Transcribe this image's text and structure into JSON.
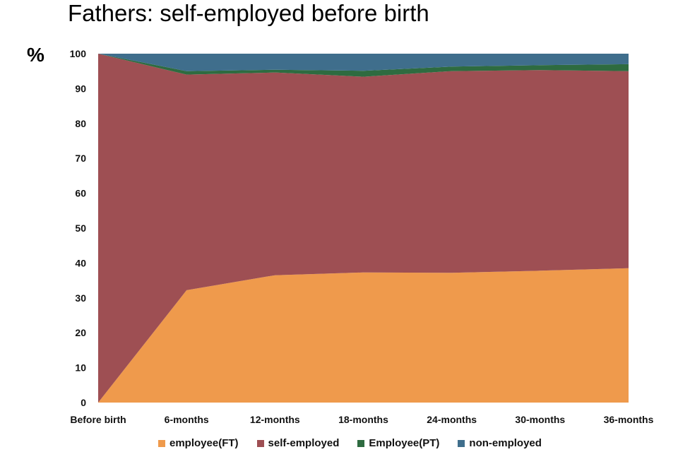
{
  "title": "Fathers: self-employed before birth",
  "chart_data": {
    "type": "area",
    "stacked": true,
    "title": "Fathers: self-employed before birth",
    "ylabel": "%",
    "xlabel": "",
    "ylim": [
      0,
      100
    ],
    "yticks": [
      0,
      10,
      20,
      30,
      40,
      50,
      60,
      70,
      80,
      90,
      100
    ],
    "categories": [
      "Before birth",
      "6-months",
      "12-months",
      "18-months",
      "24-months",
      "30-months",
      "36-months"
    ],
    "series": [
      {
        "name": "employee(FT)",
        "color": "#ef9a4c",
        "values": [
          0,
          32.2,
          36.5,
          37.3,
          37.2,
          37.8,
          38.5
        ]
      },
      {
        "name": "self-employed",
        "color": "#9e4f53",
        "values": [
          100,
          61.8,
          58.1,
          56.1,
          57.8,
          57.5,
          56.5
        ]
      },
      {
        "name": "Employee(PT)",
        "color": "#2e6b40",
        "values": [
          0,
          1.0,
          0.8,
          1.7,
          1.3,
          1.4,
          2.0
        ]
      },
      {
        "name": "non-employed",
        "color": "#3f6e8c",
        "values": [
          0,
          5.0,
          4.6,
          4.9,
          3.7,
          3.3,
          3.0
        ]
      }
    ],
    "grid": false,
    "legend_position": "bottom"
  }
}
